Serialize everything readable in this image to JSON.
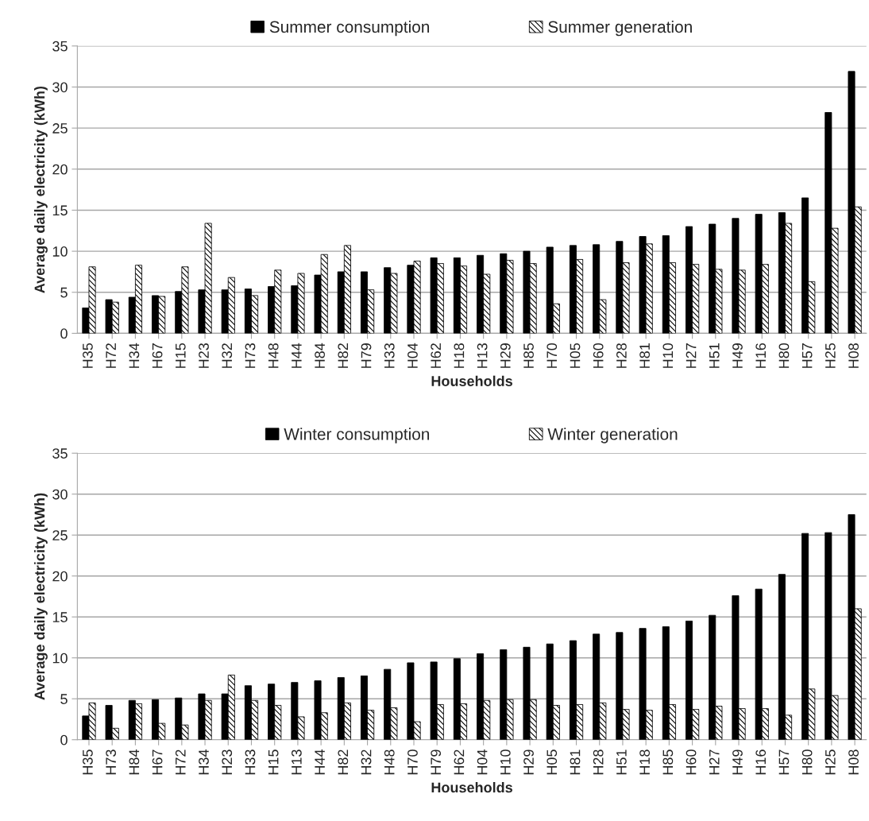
{
  "chart_data": [
    {
      "type": "bar",
      "xlabel": "Households",
      "ylabel": "Average daily electricity (kWh)",
      "categories": [
        "H35",
        "H72",
        "H34",
        "H67",
        "H15",
        "H23",
        "H32",
        "H73",
        "H48",
        "H44",
        "H84",
        "H82",
        "H79",
        "H33",
        "H04",
        "H62",
        "H18",
        "H13",
        "H29",
        "H85",
        "H70",
        "H05",
        "H60",
        "H28",
        "H81",
        "H10",
        "H27",
        "H51",
        "H49",
        "H16",
        "H80",
        "H57",
        "H25",
        "H08"
      ],
      "series": [
        {
          "name": "Summer consumption",
          "color": "#000000",
          "values": [
            3.1,
            4.1,
            4.4,
            4.6,
            5.1,
            5.3,
            5.3,
            5.4,
            5.7,
            5.8,
            7.1,
            7.5,
            7.5,
            8.0,
            8.3,
            9.2,
            9.2,
            9.5,
            9.7,
            10.0,
            10.5,
            10.7,
            10.8,
            11.2,
            11.8,
            11.9,
            13.0,
            13.3,
            14.0,
            14.5,
            14.7,
            16.5,
            26.9,
            31.9
          ]
        },
        {
          "name": "Summer generation",
          "color": "#000000",
          "values": [
            8.1,
            3.8,
            8.3,
            4.5,
            8.1,
            13.4,
            6.8,
            4.6,
            7.7,
            7.3,
            9.6,
            10.7,
            5.3,
            7.3,
            8.8,
            8.5,
            8.2,
            7.2,
            8.9,
            8.5,
            3.6,
            9.0,
            4.1,
            8.6,
            10.9,
            8.6,
            8.4,
            7.8,
            7.7,
            8.4,
            13.4,
            6.3,
            12.8,
            15.4
          ]
        }
      ],
      "ylim": [
        0,
        35
      ],
      "yticks": [
        0,
        5,
        10,
        15,
        20,
        25,
        30,
        35
      ],
      "grid": "y",
      "legend": "top"
    },
    {
      "type": "bar",
      "xlabel": "Households",
      "ylabel": "Average daily electricity (kWh)",
      "categories": [
        "H35",
        "H73",
        "H84",
        "H67",
        "H72",
        "H34",
        "H23",
        "H33",
        "H15",
        "H13",
        "H44",
        "H82",
        "H32",
        "H48",
        "H70",
        "H79",
        "H62",
        "H04",
        "H10",
        "H29",
        "H05",
        "H81",
        "H28",
        "H51",
        "H18",
        "H85",
        "H60",
        "H27",
        "H49",
        "H16",
        "H57",
        "H80",
        "H25",
        "H08"
      ],
      "series": [
        {
          "name": "Winter consumption",
          "color": "#000000",
          "values": [
            2.9,
            4.2,
            4.8,
            4.9,
            5.1,
            5.6,
            5.6,
            6.6,
            6.8,
            7.0,
            7.2,
            7.6,
            7.8,
            8.6,
            9.4,
            9.5,
            9.9,
            10.5,
            11.0,
            11.3,
            11.7,
            12.1,
            12.9,
            13.1,
            13.6,
            13.8,
            14.5,
            15.2,
            17.6,
            18.4,
            20.2,
            25.2,
            25.3,
            27.5
          ]
        },
        {
          "name": "Winter generation",
          "color": "#000000",
          "values": [
            4.5,
            1.4,
            4.4,
            2.0,
            1.8,
            4.8,
            7.9,
            4.8,
            4.2,
            2.8,
            3.3,
            4.5,
            3.6,
            3.9,
            2.2,
            4.3,
            4.4,
            4.8,
            4.9,
            4.9,
            4.2,
            4.3,
            4.5,
            3.7,
            3.6,
            4.3,
            3.7,
            4.1,
            3.8,
            3.8,
            3.0,
            6.2,
            5.4,
            16.0
          ]
        }
      ],
      "ylim": [
        0,
        35
      ],
      "yticks": [
        0,
        5,
        10,
        15,
        20,
        25,
        30,
        35
      ],
      "grid": "y",
      "legend": "top"
    }
  ]
}
